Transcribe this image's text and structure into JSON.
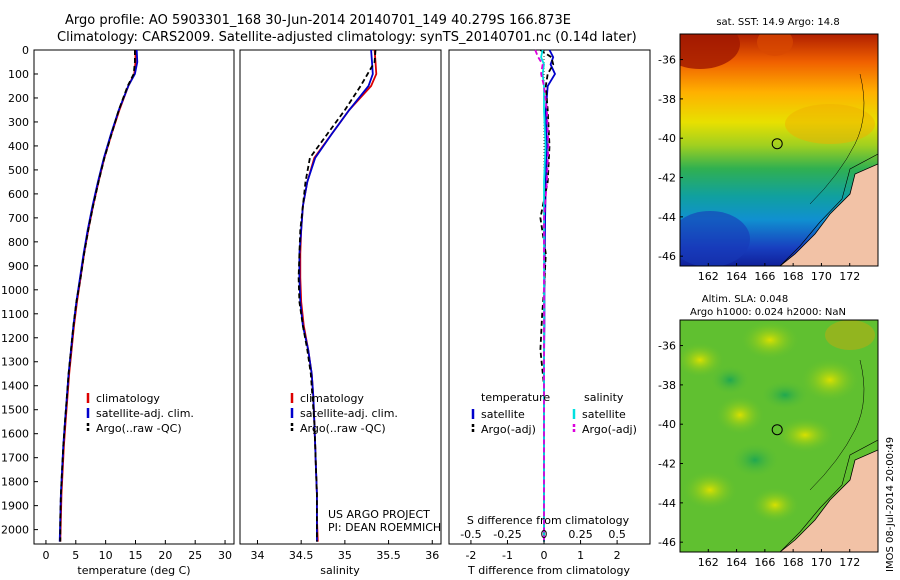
{
  "header": {
    "line1": "Argo profile: AO 5903301_168 30-Jun-2014 20140701_149 40.279S 166.873E",
    "line2": "Climatology: CARS2009. Satellite-adjusted climatology: synTS_20140701.nc (0.14d later)"
  },
  "colors": {
    "climatology": "#dd0000",
    "satellite": "#0000cc",
    "argo": "#000000",
    "salinity_satellite": "#00e0e0",
    "salinity_argo": "#dd00dd",
    "land": "#f2c2a6"
  },
  "depth_axis": {
    "ticks": [
      "0",
      "100",
      "200",
      "300",
      "400",
      "500",
      "600",
      "700",
      "800",
      "900",
      "1000",
      "1100",
      "1200",
      "1300",
      "1400",
      "1500",
      "1600",
      "1700",
      "1800",
      "1900",
      "2000"
    ],
    "ylim": [
      0,
      2060
    ]
  },
  "chart_data": [
    {
      "type": "line",
      "xlabel": "temperature (deg C)",
      "xticks": [
        "0",
        "5",
        "10",
        "15",
        "20",
        "25",
        "30"
      ],
      "xlim": [
        -2,
        31.5
      ],
      "legend": {
        "placement": "lower-middle",
        "entries": [
          "climatology",
          "satellite-adj. clim.",
          "Argo(..raw -QC)"
        ]
      },
      "series": [
        {
          "name": "climatology",
          "color": "#dd0000",
          "style": "solid",
          "x": [
            15.0,
            15.0,
            14.8,
            13.8,
            12.3,
            11.0,
            9.8,
            8.8,
            7.9,
            7.1,
            6.4,
            5.8,
            5.2,
            4.7,
            4.3,
            3.9,
            3.6,
            3.3,
            3.0,
            2.8,
            2.6,
            2.5,
            2.4
          ],
          "y": [
            0,
            50,
            100,
            150,
            250,
            350,
            450,
            550,
            650,
            750,
            850,
            950,
            1050,
            1150,
            1250,
            1350,
            1450,
            1550,
            1650,
            1750,
            1850,
            1950,
            2050
          ]
        },
        {
          "name": "satellite-adj. clim.",
          "color": "#0000cc",
          "style": "solid",
          "x": [
            15.2,
            15.3,
            14.9,
            13.8,
            12.2,
            10.9,
            9.7,
            8.7,
            7.8,
            7.0,
            6.3,
            5.7,
            5.1,
            4.6,
            4.2,
            3.8,
            3.5,
            3.2,
            2.9,
            2.7,
            2.5,
            2.4,
            2.3
          ],
          "y": [
            0,
            50,
            100,
            150,
            250,
            350,
            450,
            550,
            650,
            750,
            850,
            950,
            1050,
            1150,
            1250,
            1350,
            1450,
            1550,
            1650,
            1750,
            1850,
            1950,
            2050
          ]
        },
        {
          "name": "Argo(..raw -QC)",
          "color": "#000000",
          "style": "dashed",
          "x": [
            14.9,
            14.9,
            14.7,
            13.7,
            12.2,
            11.0,
            9.8,
            8.8,
            7.9,
            7.1,
            6.4,
            5.8,
            5.1,
            4.6,
            4.2,
            3.8,
            3.5,
            3.2,
            2.9,
            2.7,
            2.5,
            2.4,
            2.4
          ],
          "y": [
            0,
            50,
            100,
            150,
            250,
            350,
            450,
            550,
            650,
            750,
            850,
            950,
            1050,
            1150,
            1250,
            1350,
            1450,
            1550,
            1650,
            1750,
            1850,
            1950,
            2050
          ]
        }
      ]
    },
    {
      "type": "line",
      "xlabel": "salinity",
      "xticks": [
        "34",
        "34.5",
        "35",
        "35.5",
        "36"
      ],
      "xlim": [
        33.8,
        36.1
      ],
      "legend": {
        "placement": "lower-middle",
        "entries": [
          "climatology",
          "satellite-adj. clim.",
          "Argo(..raw -QC)"
        ]
      },
      "annotation": [
        "US ARGO PROJECT",
        "PI: DEAN ROEMMICH"
      ],
      "series": [
        {
          "name": "climatology",
          "color": "#dd0000",
          "style": "solid",
          "x": [
            35.34,
            35.35,
            35.36,
            35.3,
            35.05,
            34.85,
            34.65,
            34.57,
            34.52,
            34.5,
            34.49,
            34.49,
            34.5,
            34.53,
            34.58,
            34.62,
            34.64,
            34.65,
            34.66,
            34.67,
            34.68,
            34.68,
            34.69
          ],
          "y": [
            0,
            50,
            100,
            150,
            250,
            350,
            450,
            550,
            650,
            750,
            850,
            950,
            1050,
            1150,
            1250,
            1350,
            1450,
            1550,
            1650,
            1750,
            1850,
            1950,
            2050
          ]
        },
        {
          "name": "satellite-adj. clim.",
          "color": "#0000cc",
          "style": "solid",
          "x": [
            35.3,
            35.31,
            35.32,
            35.27,
            35.05,
            34.85,
            34.66,
            34.57,
            34.52,
            34.5,
            34.48,
            34.48,
            34.49,
            34.52,
            34.58,
            34.62,
            34.64,
            34.65,
            34.66,
            34.67,
            34.68,
            34.68,
            34.68
          ],
          "y": [
            0,
            50,
            100,
            150,
            250,
            350,
            450,
            550,
            650,
            750,
            850,
            950,
            1050,
            1150,
            1250,
            1350,
            1450,
            1550,
            1650,
            1750,
            1850,
            1950,
            2050
          ]
        },
        {
          "name": "Argo(..raw -QC)",
          "color": "#000000",
          "style": "dashed",
          "x": [
            35.35,
            35.34,
            35.26,
            35.18,
            35.0,
            34.8,
            34.6,
            34.55,
            34.52,
            34.49,
            34.48,
            34.47,
            34.48,
            34.52,
            34.57,
            34.61,
            34.63,
            34.65,
            34.66,
            34.67,
            34.68,
            34.68,
            34.68
          ],
          "y": [
            0,
            50,
            100,
            150,
            250,
            350,
            450,
            550,
            650,
            750,
            850,
            950,
            1050,
            1150,
            1250,
            1350,
            1450,
            1550,
            1650,
            1750,
            1850,
            1950,
            2050
          ]
        }
      ]
    },
    {
      "type": "line",
      "xlabel": "T difference from climatology",
      "xticks": [
        "-2",
        "-1",
        "0",
        "1",
        "2"
      ],
      "xlim": [
        -2.6,
        2.9
      ],
      "top_axis_label": "S difference from climatology",
      "top_xticks": [
        "-0.5",
        "-0.25",
        "0",
        "0.25",
        "0.5"
      ],
      "legend": {
        "placement": "lower-middle",
        "titles": [
          "temperature",
          "salinity"
        ],
        "entries": [
          "satellite",
          "Argo(-adj)",
          "satellite",
          "Argo(-adj)"
        ]
      },
      "series": [
        {
          "name": "satellite",
          "color": "#0000cc",
          "style": "solid",
          "x": [
            0.15,
            0.25,
            0.18,
            0.3,
            0.1,
            0.05,
            0.08,
            0.05,
            0.03,
            0.02,
            0.01,
            0.01,
            0.0,
            0.0,
            0.0,
            0.0,
            0.0
          ],
          "y": [
            0,
            30,
            60,
            100,
            150,
            250,
            400,
            550,
            700,
            850,
            1000,
            1150,
            1300,
            1500,
            1700,
            1900,
            2050
          ]
        },
        {
          "name": "Argo(-adj)",
          "color": "#000000",
          "style": "dashed",
          "x": [
            -0.1,
            0.2,
            0.25,
            0.1,
            0.05,
            0.1,
            0.15,
            0.1,
            -0.1,
            0.05,
            0.0,
            -0.05,
            -0.1,
            0.0,
            0.0,
            0.0,
            0.0
          ],
          "y": [
            0,
            30,
            60,
            100,
            150,
            250,
            400,
            550,
            700,
            850,
            1000,
            1100,
            1250,
            1400,
            1600,
            1800,
            2050
          ]
        },
        {
          "name": "satellite",
          "color": "#00e0e0",
          "style": "solid",
          "x": [
            -0.01,
            -0.02,
            0.0,
            -0.01,
            0.0,
            0.0,
            0.01,
            0.0,
            0.0,
            0.0,
            0.0,
            0.0,
            0.0,
            0.0,
            0.0,
            0.0,
            0.0
          ],
          "y": [
            0,
            30,
            60,
            100,
            150,
            250,
            400,
            550,
            700,
            850,
            1000,
            1150,
            1300,
            1500,
            1700,
            1900,
            2050
          ]
        },
        {
          "name": "Argo(-adj)",
          "color": "#dd00dd",
          "style": "dashed",
          "x": [
            -0.06,
            -0.04,
            -0.01,
            -0.02,
            0.0,
            0.02,
            0.03,
            0.02,
            0.0,
            0.0,
            0.0,
            0.0,
            0.0,
            0.0,
            0.0,
            0.0,
            0.0
          ],
          "y": [
            0,
            30,
            60,
            100,
            150,
            250,
            400,
            550,
            700,
            850,
            1000,
            1150,
            1300,
            1500,
            1700,
            1900,
            2050
          ]
        }
      ]
    }
  ],
  "maps": [
    {
      "title": "sat. SST: 14.9  Argo: 14.8",
      "subtitle": "",
      "xticks": [
        "162",
        "164",
        "166",
        "168",
        "170",
        "172"
      ],
      "yticks": [
        "-36",
        "-38",
        "-40",
        "-42",
        "-44",
        "-46"
      ],
      "lon_range": [
        160.0,
        174.0
      ],
      "lat_range": [
        -46.5,
        -34.7
      ],
      "marker": {
        "lon": 166.873,
        "lat": -40.279
      }
    },
    {
      "title": "Altim. SLA: 0.048",
      "subtitle": "Argo h1000: 0.024 h2000: NaN",
      "xticks": [
        "162",
        "164",
        "166",
        "168",
        "170",
        "172"
      ],
      "yticks": [
        "-36",
        "-38",
        "-40",
        "-42",
        "-44",
        "-46"
      ],
      "lon_range": [
        160.0,
        174.0
      ],
      "lat_range": [
        -46.5,
        -34.7
      ],
      "marker": {
        "lon": 166.873,
        "lat": -40.279
      }
    }
  ],
  "footer_stamp": "IMOS 08-Jul-2014 20:00:49"
}
